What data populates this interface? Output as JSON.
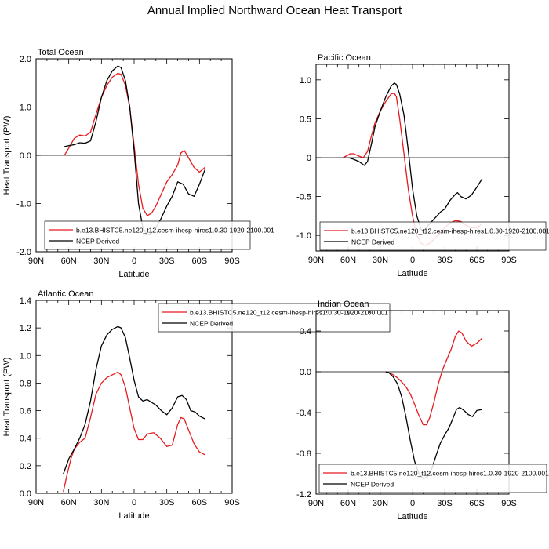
{
  "title": "Annual Implied Northward Ocean Heat Transport",
  "colors": {
    "model": "#e8191d",
    "obs": "#000000",
    "zero": "#000000"
  },
  "chart_data": [
    {
      "type": "line",
      "title": "Total Ocean",
      "xlabel": "Latitude",
      "ylabel": "Heat Transport (PW)",
      "xlim": [
        90,
        -90
      ],
      "ylim": [
        -2.0,
        2.0
      ],
      "xticks": [
        90,
        60,
        30,
        0,
        -30,
        -60,
        -90
      ],
      "xtick_labels": [
        "90N",
        "60N",
        "30N",
        "0",
        "30S",
        "60S",
        "90S"
      ],
      "yticks": [
        -2.0,
        -1.0,
        0.0,
        1.0,
        2.0
      ],
      "ytick_labels": [
        "-2.0",
        "-1.0",
        "0.0",
        "1.0",
        "2.0"
      ],
      "legend_position": "bottom",
      "series": [
        {
          "name": "b.e13.BHISTC5.ne120_t12.cesm-ihesp-hires1.0.30-1920-2100.001",
          "color": "#e8191d",
          "x": [
            64,
            60,
            55,
            50,
            45,
            40,
            35,
            30,
            25,
            20,
            15,
            12,
            8,
            4,
            0,
            -4,
            -8,
            -12,
            -16,
            -20,
            -25,
            -30,
            -35,
            -40,
            -43,
            -46,
            -50,
            -55,
            -60,
            -65
          ],
          "y": [
            0.0,
            0.15,
            0.35,
            0.42,
            0.4,
            0.48,
            0.85,
            1.2,
            1.45,
            1.62,
            1.7,
            1.68,
            1.45,
            1.0,
            0.2,
            -0.6,
            -1.1,
            -1.25,
            -1.2,
            -1.05,
            -0.8,
            -0.55,
            -0.4,
            -0.2,
            0.05,
            0.1,
            -0.05,
            -0.25,
            -0.35,
            -0.25
          ]
        },
        {
          "name": "NCEP Derived",
          "color": "#000000",
          "x": [
            64,
            60,
            55,
            50,
            45,
            40,
            35,
            30,
            25,
            20,
            15,
            12,
            8,
            4,
            0,
            -4,
            -8,
            -12,
            -16,
            -20,
            -25,
            -30,
            -35,
            -40,
            -45,
            -50,
            -55,
            -60,
            -65
          ],
          "y": [
            0.18,
            0.2,
            0.22,
            0.26,
            0.25,
            0.3,
            0.7,
            1.2,
            1.55,
            1.75,
            1.85,
            1.82,
            1.55,
            1.0,
            0.1,
            -1.0,
            -1.5,
            -1.65,
            -1.62,
            -1.5,
            -1.3,
            -1.05,
            -0.85,
            -0.55,
            -0.6,
            -0.8,
            -0.85,
            -0.6,
            -0.3
          ]
        }
      ]
    },
    {
      "type": "line",
      "title": "Pacific Ocean",
      "xlabel": "Latitude",
      "ylabel": "",
      "xlim": [
        90,
        -90
      ],
      "ylim": [
        -1.2,
        1.2
      ],
      "xticks": [
        90,
        60,
        30,
        0,
        -30,
        -60,
        -90
      ],
      "xtick_labels": [
        "90N",
        "60N",
        "30N",
        "0",
        "30S",
        "60S",
        "90S"
      ],
      "yticks": [
        -1.0,
        -0.5,
        0.0,
        0.5,
        1.0
      ],
      "ytick_labels": [
        "-1.0",
        "-0.5",
        "0",
        "0.5",
        "1.0"
      ],
      "legend_position": "bottom",
      "series": [
        {
          "name": "b.e13.BHISTC5.ne120_t12.cesm-ihesp-hires1.0.30-1920-2100.001",
          "color": "#e8191d",
          "x": [
            65,
            62,
            58,
            55,
            50,
            46,
            42,
            38,
            35,
            30,
            25,
            20,
            17,
            15,
            12,
            8,
            4,
            0,
            -4,
            -8,
            -12,
            -16,
            -20,
            -25,
            -30,
            -35,
            -40,
            -45,
            -50,
            -55,
            -60,
            -65
          ],
          "y": [
            0.0,
            0.02,
            0.05,
            0.05,
            0.02,
            0.0,
            0.08,
            0.3,
            0.45,
            0.6,
            0.72,
            0.82,
            0.83,
            0.78,
            0.5,
            0.05,
            -0.4,
            -0.75,
            -1.0,
            -1.1,
            -1.13,
            -1.1,
            -1.05,
            -0.98,
            -0.9,
            -0.84,
            -0.81,
            -0.82,
            -0.87,
            -0.9,
            -0.9,
            -0.85
          ]
        },
        {
          "name": "NCEP Derived",
          "color": "#000000",
          "x": [
            60,
            55,
            50,
            45,
            42,
            38,
            35,
            30,
            25,
            20,
            17,
            15,
            12,
            8,
            4,
            0,
            -4,
            -8,
            -10,
            -14,
            -18,
            -22,
            -26,
            -30,
            -35,
            -40,
            -42,
            -45,
            -50,
            -55,
            -60,
            -65
          ],
          "y": [
            0.0,
            -0.02,
            -0.05,
            -0.1,
            -0.05,
            0.2,
            0.4,
            0.6,
            0.78,
            0.92,
            0.96,
            0.94,
            0.82,
            0.55,
            0.1,
            -0.4,
            -0.75,
            -0.92,
            -0.95,
            -0.88,
            -0.82,
            -0.76,
            -0.7,
            -0.66,
            -0.55,
            -0.47,
            -0.45,
            -0.5,
            -0.53,
            -0.48,
            -0.38,
            -0.27
          ]
        }
      ]
    },
    {
      "type": "line",
      "title": "Atlantic Ocean",
      "xlabel": "Latitude",
      "ylabel": "Heat Transport (PW)",
      "xlim": [
        90,
        -90
      ],
      "ylim": [
        0.0,
        1.4
      ],
      "xticks": [
        90,
        60,
        30,
        0,
        -30,
        -60,
        -90
      ],
      "xtick_labels": [
        "90N",
        "60N",
        "30N",
        "0",
        "30S",
        "60S",
        "90S"
      ],
      "yticks": [
        0.0,
        0.2,
        0.4,
        0.6,
        0.8,
        1.0,
        1.2,
        1.4
      ],
      "ytick_labels": [
        "0.0",
        "0.2",
        "0.4",
        "0.6",
        "0.8",
        "1.0",
        "1.2",
        "1.4"
      ],
      "legend_position": "top-right",
      "series": [
        {
          "name": "b.e13.BHISTC5.ne120_t12.cesm-ihesp-hires1.0.30-1920-2100.001",
          "color": "#e8191d",
          "x": [
            65,
            62,
            58,
            55,
            50,
            45,
            40,
            35,
            30,
            25,
            20,
            15,
            12,
            8,
            4,
            0,
            -4,
            -8,
            -12,
            -18,
            -24,
            -30,
            -35,
            -40,
            -43,
            -46,
            -50,
            -55,
            -60,
            -65
          ],
          "y": [
            0.01,
            0.12,
            0.25,
            0.32,
            0.37,
            0.4,
            0.55,
            0.72,
            0.8,
            0.84,
            0.86,
            0.88,
            0.86,
            0.77,
            0.62,
            0.47,
            0.39,
            0.39,
            0.43,
            0.44,
            0.4,
            0.34,
            0.35,
            0.5,
            0.55,
            0.54,
            0.46,
            0.36,
            0.3,
            0.28
          ]
        },
        {
          "name": "NCEP Derived",
          "color": "#000000",
          "x": [
            65,
            60,
            55,
            50,
            45,
            40,
            35,
            30,
            25,
            20,
            15,
            12,
            8,
            4,
            0,
            -4,
            -8,
            -12,
            -16,
            -20,
            -25,
            -30,
            -35,
            -40,
            -44,
            -48,
            -52,
            -56,
            -60,
            -65
          ],
          "y": [
            0.14,
            0.25,
            0.32,
            0.4,
            0.5,
            0.67,
            0.9,
            1.07,
            1.15,
            1.19,
            1.21,
            1.2,
            1.13,
            0.98,
            0.82,
            0.7,
            0.67,
            0.68,
            0.66,
            0.64,
            0.6,
            0.57,
            0.62,
            0.7,
            0.71,
            0.68,
            0.6,
            0.59,
            0.56,
            0.54
          ]
        }
      ]
    },
    {
      "type": "line",
      "title": "Indian Ocean",
      "xlabel": "Latitude",
      "ylabel": "",
      "xlim": [
        90,
        -90
      ],
      "ylim": [
        -1.2,
        0.6
      ],
      "xticks": [
        90,
        60,
        30,
        0,
        -30,
        -60,
        -90
      ],
      "xtick_labels": [
        "90N",
        "60N",
        "30N",
        "0",
        "30S",
        "60S",
        "90S"
      ],
      "yticks": [
        -1.2,
        -0.8,
        -0.4,
        0.0,
        0.4
      ],
      "ytick_labels": [
        "-1.2",
        "-0.8",
        "-0.4",
        "0.0",
        "0.4"
      ],
      "legend_position": "bottom",
      "series": [
        {
          "name": "b.e13.BHISTC5.ne120_t12.cesm-ihesp-hires1.0.30-1920-2100.001",
          "color": "#e8191d",
          "x": [
            25,
            22,
            18,
            14,
            10,
            6,
            2,
            -2,
            -6,
            -10,
            -13,
            -16,
            -20,
            -24,
            -28,
            -32,
            -36,
            -40,
            -43,
            -46,
            -50,
            -55,
            -60,
            -65
          ],
          "y": [
            0.0,
            -0.01,
            -0.03,
            -0.06,
            -0.1,
            -0.15,
            -0.22,
            -0.32,
            -0.43,
            -0.52,
            -0.52,
            -0.45,
            -0.3,
            -0.12,
            0.02,
            0.12,
            0.22,
            0.35,
            0.4,
            0.38,
            0.3,
            0.25,
            0.28,
            0.33
          ]
        },
        {
          "name": "NCEP Derived",
          "color": "#000000",
          "x": [
            25,
            22,
            18,
            14,
            10,
            6,
            2,
            -2,
            -6,
            -10,
            -14,
            -18,
            -22,
            -26,
            -30,
            -34,
            -38,
            -41,
            -44,
            -48,
            -52,
            -56,
            -60,
            -65
          ],
          "y": [
            0.0,
            -0.01,
            -0.05,
            -0.12,
            -0.25,
            -0.45,
            -0.68,
            -0.88,
            -1.0,
            -1.05,
            -1.03,
            -0.95,
            -0.82,
            -0.7,
            -0.62,
            -0.55,
            -0.45,
            -0.37,
            -0.35,
            -0.38,
            -0.42,
            -0.44,
            -0.38,
            -0.37
          ]
        }
      ]
    }
  ]
}
